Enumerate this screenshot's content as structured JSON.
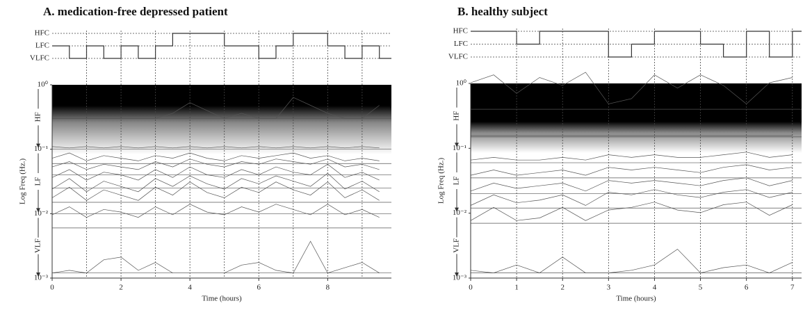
{
  "chart_data": [
    {
      "type": "spectral-waterfall",
      "title": "A. medication-free depressed patient",
      "xlabel": "Time (hours)",
      "ylabel": "Log Freq (Hz.)",
      "yscale": "log",
      "xlim": [
        0,
        9.85
      ],
      "xticks": [
        0,
        2,
        4,
        6,
        8
      ],
      "xgrid": [
        1,
        2,
        3,
        4,
        5,
        6,
        7,
        8,
        9
      ],
      "ylim": [
        0.001,
        1
      ],
      "yticks": [
        {
          "value": 1,
          "label": "10⁰"
        },
        {
          "value": 0.1,
          "label": "10⁻¹"
        },
        {
          "value": 0.01,
          "label": "10⁻²"
        },
        {
          "value": 0.001,
          "label": "10⁻³"
        }
      ],
      "bands": [
        {
          "label": "HF",
          "range": [
            1,
            0.1
          ]
        },
        {
          "label": "LF",
          "range": [
            0.1,
            0.01
          ]
        },
        {
          "label": "VLF",
          "range": [
            0.01,
            0.001
          ]
        }
      ],
      "state_ylim": [
        0.5,
        3.5
      ],
      "state_ticks": [
        {
          "value": 3,
          "label": "HFC"
        },
        {
          "value": 2,
          "label": "LFC"
        },
        {
          "value": 1,
          "label": "VLFC"
        }
      ],
      "states": {
        "x": [
          0,
          0.5,
          1,
          1.5,
          2,
          2.5,
          3,
          3.5,
          4,
          4.5,
          5,
          5.5,
          6,
          6.5,
          7,
          7.5,
          8,
          8.5,
          9,
          9.5
        ],
        "values": [
          2,
          1,
          2,
          1,
          2,
          1,
          2,
          3,
          3,
          3,
          2,
          2,
          1,
          2,
          3,
          3,
          2,
          1,
          2,
          1
        ]
      },
      "x": [
        0,
        0.5,
        1,
        1.5,
        2,
        2.5,
        3,
        3.5,
        4,
        4.5,
        5,
        5.5,
        6,
        6.5,
        7,
        7.5,
        8,
        8.5,
        9,
        9.5
      ],
      "traces": [
        {
          "freq": 0.3,
          "values": [
            0,
            0,
            0,
            0,
            0,
            0,
            0,
            0.2,
            0.6,
            0.3,
            0,
            0.2,
            0,
            0,
            0.8,
            0.5,
            0.2,
            0,
            0,
            0.5
          ]
        },
        {
          "freq": 0.1,
          "values": [
            0.1,
            0.05,
            0.1,
            0.05,
            0.1,
            0.05,
            0.1,
            0.05,
            0.1,
            0.05,
            0.1,
            0.05,
            0.1,
            0.05,
            0.1,
            0.05,
            0.1,
            0.05,
            0.1,
            0.05
          ]
        },
        {
          "freq": 0.06,
          "values": [
            0.2,
            0.4,
            0.1,
            0.3,
            0.2,
            0.1,
            0.3,
            0.2,
            0.4,
            0.2,
            0.1,
            0.3,
            0.2,
            0.3,
            0.4,
            0.2,
            0.3,
            0.1,
            0.2,
            0.1
          ]
        },
        {
          "freq": 0.04,
          "values": [
            0.3,
            0.5,
            0.2,
            0.4,
            0.3,
            0.2,
            0.5,
            0.3,
            0.6,
            0.4,
            0.3,
            0.5,
            0.4,
            0.6,
            0.5,
            0.4,
            0.6,
            0.3,
            0.4,
            0.2
          ]
        },
        {
          "freq": 0.025,
          "values": [
            0.4,
            0.7,
            0.3,
            0.6,
            0.5,
            0.3,
            0.7,
            0.4,
            0.8,
            0.5,
            0.4,
            0.7,
            0.5,
            0.8,
            0.6,
            0.5,
            0.9,
            0.4,
            0.6,
            0.3
          ]
        },
        {
          "freq": 0.015,
          "values": [
            0.5,
            0.9,
            0.4,
            0.8,
            0.6,
            0.4,
            0.9,
            0.6,
            1.0,
            0.7,
            0.5,
            0.9,
            0.7,
            1.0,
            0.8,
            0.6,
            1.1,
            0.5,
            0.8,
            0.4
          ]
        },
        {
          "freq": 0.01,
          "values": [
            0.6,
            1.0,
            0.5,
            0.9,
            0.7,
            0.5,
            1.0,
            0.7,
            1.2,
            0.8,
            0.6,
            1.0,
            0.8,
            1.2,
            0.9,
            0.7,
            1.2,
            0.6,
            0.9,
            0.5
          ]
        },
        {
          "freq": 0.006,
          "values": [
            0.5,
            0.8,
            0.4,
            0.7,
            0.6,
            0.4,
            0.8,
            0.5,
            0.9,
            0.6,
            0.5,
            0.8,
            0.6,
            0.9,
            0.7,
            0.5,
            0.9,
            0.5,
            0.7,
            0.4
          ]
        },
        {
          "freq": 0.0012,
          "values": [
            0,
            0.1,
            0,
            0.5,
            0.6,
            0.1,
            0.4,
            0,
            0,
            0,
            0,
            0.3,
            0.4,
            0.1,
            0,
            1.2,
            0,
            0.2,
            0.4,
            0
          ]
        }
      ]
    },
    {
      "type": "spectral-waterfall",
      "title": "B. healthy subject",
      "xlabel": "Time (hours)",
      "ylabel": "Log Freq (Hz.)",
      "yscale": "log",
      "xlim": [
        0,
        7.2
      ],
      "xticks": [
        0,
        1,
        2,
        3,
        4,
        5,
        6,
        7
      ],
      "xgrid": [
        1,
        2,
        3,
        4,
        5,
        6,
        7
      ],
      "ylim": [
        0.001,
        1
      ],
      "yticks": [
        {
          "value": 1,
          "label": "10⁰"
        },
        {
          "value": 0.1,
          "label": "10⁻¹"
        },
        {
          "value": 0.01,
          "label": "10⁻²"
        },
        {
          "value": 0.001,
          "label": "10⁻³"
        }
      ],
      "bands": [
        {
          "label": "HF",
          "range": [
            1,
            0.1
          ]
        },
        {
          "label": "LF",
          "range": [
            0.1,
            0.01
          ]
        },
        {
          "label": "VLF",
          "range": [
            0.01,
            0.001
          ]
        }
      ],
      "state_ylim": [
        0.5,
        3.5
      ],
      "state_ticks": [
        {
          "value": 3,
          "label": "HFC"
        },
        {
          "value": 2,
          "label": "LFC"
        },
        {
          "value": 1,
          "label": "VLFC"
        }
      ],
      "states": {
        "x": [
          0,
          0.5,
          1,
          1.5,
          2,
          2.5,
          3,
          3.5,
          4,
          4.5,
          5,
          5.5,
          6,
          6.5,
          7
        ],
        "values": [
          3,
          3,
          2,
          3,
          3,
          3,
          1,
          2,
          3,
          3,
          2,
          1,
          3,
          1,
          3
        ]
      },
      "x": [
        0,
        0.5,
        1,
        1.5,
        2,
        2.5,
        3,
        3.5,
        4,
        4.5,
        5,
        5.5,
        6,
        6.5,
        7
      ],
      "traces": [
        {
          "freq": 0.4,
          "values": [
            1.0,
            1.3,
            0.6,
            1.2,
            0.9,
            1.4,
            0.2,
            0.4,
            1.3,
            0.8,
            1.3,
            0.9,
            0.2,
            1.0,
            1.2
          ]
        },
        {
          "freq": 0.15,
          "values": [
            0.05,
            0.05,
            0.05,
            0.05,
            0.05,
            0.05,
            0.05,
            0.05,
            0.05,
            0.05,
            0.05,
            0.05,
            0.05,
            0.05,
            0.05
          ]
        },
        {
          "freq": 0.06,
          "values": [
            0.1,
            0.2,
            0.1,
            0.1,
            0.2,
            0.1,
            0.3,
            0.2,
            0.3,
            0.2,
            0.2,
            0.3,
            0.4,
            0.2,
            0.3
          ]
        },
        {
          "freq": 0.035,
          "values": [
            0.1,
            0.3,
            0.1,
            0.2,
            0.3,
            0.1,
            0.4,
            0.3,
            0.4,
            0.3,
            0.2,
            0.4,
            0.5,
            0.3,
            0.4
          ]
        },
        {
          "freq": 0.02,
          "values": [
            0.1,
            0.4,
            0.2,
            0.3,
            0.4,
            0.1,
            0.5,
            0.4,
            0.5,
            0.4,
            0.3,
            0.5,
            0.6,
            0.3,
            0.5
          ]
        },
        {
          "freq": 0.012,
          "values": [
            0.1,
            0.5,
            0.2,
            0.3,
            0.5,
            0.1,
            0.6,
            0.5,
            0.7,
            0.5,
            0.4,
            0.6,
            0.7,
            0.4,
            0.6
          ]
        },
        {
          "freq": 0.007,
          "values": [
            0.1,
            0.6,
            0.1,
            0.2,
            0.6,
            0.1,
            0.5,
            0.6,
            0.8,
            0.5,
            0.4,
            0.7,
            0.8,
            0.3,
            0.7
          ]
        },
        {
          "freq": 0.0012,
          "values": [
            0.1,
            0,
            0.3,
            0,
            0.6,
            0,
            0,
            0.1,
            0.3,
            0.9,
            0,
            0.2,
            0.3,
            0,
            0.4
          ]
        }
      ]
    }
  ]
}
